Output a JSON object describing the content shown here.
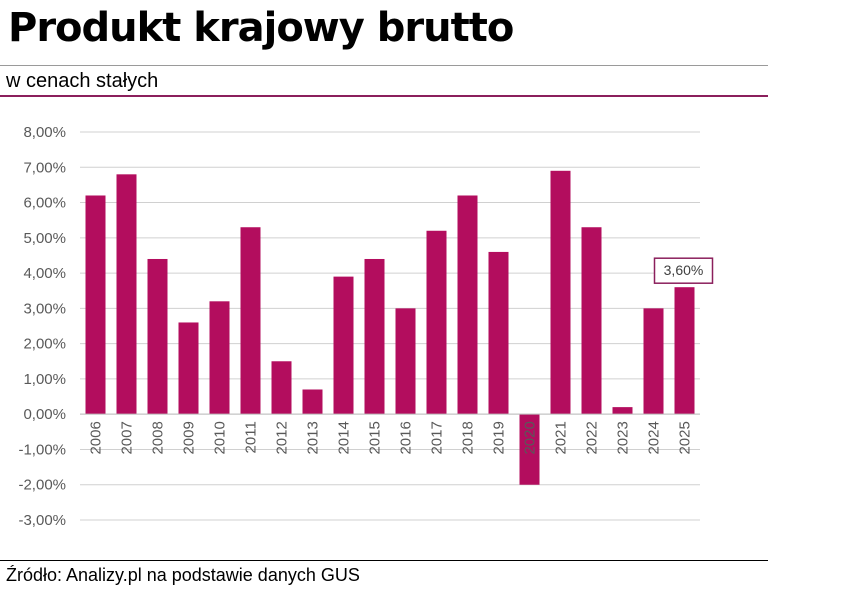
{
  "header": {
    "title": "Produkt krajowy brutto",
    "subtitle": "w cenach stałych"
  },
  "footer": {
    "source": "Źródło: Analizy.pl na podstawie danych GUS"
  },
  "colors": {
    "bar": "#b30d5e",
    "accent_rule": "#8b1f5c",
    "grid": "#d0d0d0",
    "axis_text": "#595959"
  },
  "chart_data": {
    "type": "bar",
    "title": "Produkt krajowy brutto",
    "subtitle": "w cenach stałych",
    "xlabel": "",
    "ylabel": "",
    "categories": [
      "2006",
      "2007",
      "2008",
      "2009",
      "2010",
      "2011",
      "2012",
      "2013",
      "2014",
      "2015",
      "2016",
      "2017",
      "2018",
      "2019",
      "2020",
      "2021",
      "2022",
      "2023",
      "2024",
      "2025"
    ],
    "values": [
      6.2,
      6.8,
      4.4,
      2.6,
      3.2,
      5.3,
      1.5,
      0.7,
      3.9,
      4.4,
      3.0,
      5.2,
      6.2,
      4.6,
      -2.0,
      6.9,
      5.3,
      0.2,
      3.0,
      3.6
    ],
    "ylim": [
      -3,
      8
    ],
    "yticks": [
      8,
      7,
      6,
      5,
      4,
      3,
      2,
      1,
      0,
      -1,
      -2,
      -3
    ],
    "ytick_labels": [
      "8,00%",
      "7,00%",
      "6,00%",
      "5,00%",
      "4,00%",
      "3,00%",
      "2,00%",
      "1,00%",
      "0,00%",
      "-1,00%",
      "-2,00%",
      "-3,00%"
    ],
    "grid": true,
    "legend": "none",
    "annotations": [
      {
        "category": "2025",
        "text": "3,60%"
      }
    ]
  }
}
